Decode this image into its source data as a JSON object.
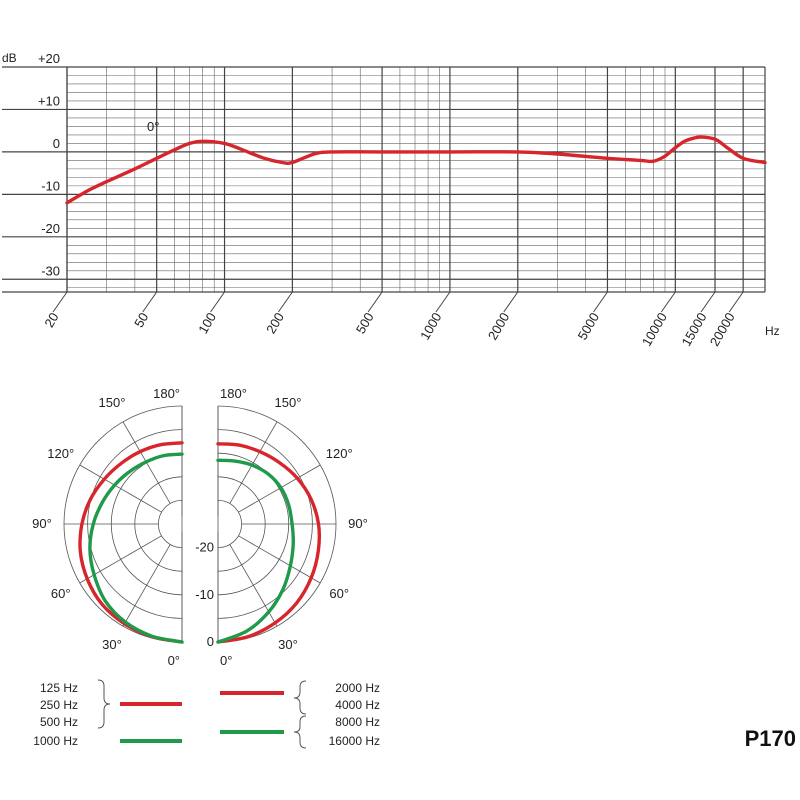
{
  "chart_data": [
    {
      "type": "line",
      "title": "",
      "ylabel": "dB",
      "xlabel": "Hz",
      "x_scale": "log",
      "xlim": [
        20,
        25000
      ],
      "ylim": [
        -33,
        20
      ],
      "grid": true,
      "y_ticks": [
        "+20",
        "+10",
        "0",
        "-10",
        "-20",
        "-30"
      ],
      "y_tick_values": [
        20,
        10,
        0,
        -10,
        -20,
        -30
      ],
      "x_ticks": [
        "20",
        "50",
        "100",
        "200",
        "500",
        "1000",
        "2000",
        "5000",
        "10000",
        "15000",
        "20000"
      ],
      "x_tick_values": [
        20,
        50,
        100,
        200,
        500,
        1000,
        2000,
        5000,
        10000,
        15000,
        20000
      ],
      "annotation": "0°",
      "color": "#d7262b",
      "series": [
        {
          "x": [
            20,
            25,
            30,
            40,
            50,
            60,
            70,
            80,
            100,
            120,
            150,
            180,
            200,
            250,
            300,
            500,
            1000,
            2000,
            3000,
            5000,
            7000,
            8000,
            9000,
            10000,
            11000,
            12000,
            13000,
            15000,
            17000,
            20000,
            25000
          ],
          "y": [
            -12,
            -9,
            -7,
            -4,
            -1.5,
            0.5,
            2,
            2.5,
            2,
            0.5,
            -1.5,
            -2.5,
            -2.5,
            -0.5,
            0,
            0,
            0,
            0,
            -0.5,
            -1.5,
            -2,
            -2.2,
            -1,
            1,
            2.5,
            3.2,
            3.5,
            3,
            1,
            -1.5,
            -2.5
          ]
        }
      ]
    },
    {
      "type": "polar",
      "title": "",
      "angle_labels_left": [
        "180°",
        "150°",
        "120°",
        "90°",
        "60°",
        "30°",
        "0°"
      ],
      "angle_labels_right": [
        "180°",
        "150°",
        "120°",
        "90°",
        "60°",
        "30°",
        "0°"
      ],
      "radial_labels": [
        "-20",
        "-10",
        "0"
      ],
      "series": [
        {
          "side": "left",
          "color": "#d7262b",
          "angle": [
            0,
            15,
            30,
            45,
            60,
            75,
            90,
            105,
            120,
            135,
            150,
            165,
            180
          ],
          "db": [
            0,
            -0.3,
            -0.6,
            -1,
            -1.8,
            -2.7,
            -3.8,
            -4.9,
            -6,
            -6.8,
            -7.3,
            -7.6,
            -7.8
          ]
        },
        {
          "side": "left",
          "color": "#1f9a4a",
          "angle": [
            0,
            15,
            30,
            45,
            60,
            75,
            90,
            105,
            120,
            135,
            150,
            165,
            180
          ],
          "db": [
            0,
            -0.4,
            -1,
            -2,
            -3.5,
            -4.8,
            -6.2,
            -7.5,
            -8.5,
            -9.3,
            -9.8,
            -10,
            -10.2
          ]
        },
        {
          "side": "right",
          "color": "#d7262b",
          "angle": [
            0,
            15,
            30,
            45,
            60,
            75,
            90,
            105,
            120,
            135,
            150,
            165,
            180
          ],
          "db": [
            0,
            -0.3,
            -0.8,
            -1.4,
            -2.2,
            -3,
            -3.7,
            -4.6,
            -5.6,
            -6.6,
            -7.3,
            -7.7,
            -8
          ]
        },
        {
          "side": "right",
          "color": "#1f9a4a",
          "angle": [
            0,
            15,
            30,
            45,
            60,
            75,
            90,
            105,
            120,
            135,
            150,
            165,
            180
          ],
          "db": [
            0,
            -1.5,
            -3.5,
            -5.5,
            -7.3,
            -8.5,
            -9.3,
            -9.5,
            -9.6,
            -10,
            -10.6,
            -11.2,
            -11.5
          ]
        }
      ]
    }
  ],
  "legend": {
    "left_red_labels": [
      "125 Hz",
      "250 Hz",
      "500 Hz"
    ],
    "left_green_label": "1000 Hz",
    "right_red_labels": [
      "2000 Hz",
      "4000 Hz"
    ],
    "right_green_labels": [
      "8000 Hz",
      "16000 Hz"
    ],
    "red_color": "#d7262b",
    "green_color": "#1f9a4a"
  },
  "model": "P170"
}
